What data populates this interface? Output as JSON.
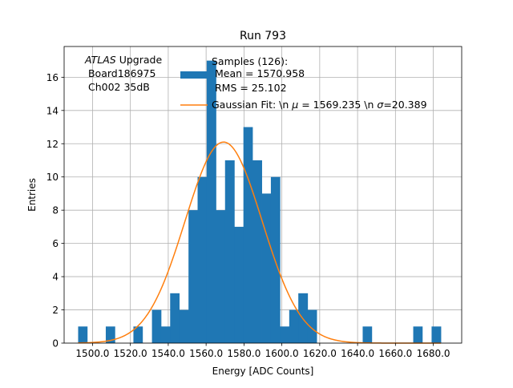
{
  "chart_data": {
    "type": "bar",
    "title": "Run 793",
    "xlabel": "Energy [ADC Counts]",
    "ylabel": "Entries",
    "xlim": [
      1485.0,
      1695.0
    ],
    "ylim": [
      0,
      17.85
    ],
    "grid": true,
    "x_ticks": [
      1500,
      1520,
      1540,
      1560,
      1580,
      1600,
      1620,
      1640,
      1660,
      1680
    ],
    "x_tick_labels": [
      "1500.0",
      "1520.0",
      "1540.0",
      "1560.0",
      "1580.0",
      "1600.0",
      "1620.0",
      "1640.0",
      "1660.0",
      "1680.0"
    ],
    "y_ticks": [
      0,
      2,
      4,
      6,
      8,
      10,
      12,
      14,
      16
    ],
    "y_tick_labels": [
      "0",
      "2",
      "4",
      "6",
      "8",
      "10",
      "12",
      "14",
      "16"
    ],
    "histogram": {
      "name": "Samples (126):\n Mean = 1570.958\n RMS = 25.102",
      "color": "#1f77b4",
      "bins": [
        {
          "x0": 1492.4,
          "x1": 1497.2,
          "count": 1
        },
        {
          "x0": 1507.0,
          "x1": 1511.8,
          "count": 1
        },
        {
          "x0": 1521.6,
          "x1": 1526.4,
          "count": 1
        },
        {
          "x0": 1531.4,
          "x1": 1536.2,
          "count": 2
        },
        {
          "x0": 1536.2,
          "x1": 1541.0,
          "count": 1
        },
        {
          "x0": 1541.0,
          "x1": 1545.8,
          "count": 3
        },
        {
          "x0": 1545.8,
          "x1": 1550.7,
          "count": 2
        },
        {
          "x0": 1550.7,
          "x1": 1555.5,
          "count": 8
        },
        {
          "x0": 1555.5,
          "x1": 1560.3,
          "count": 10
        },
        {
          "x0": 1560.3,
          "x1": 1565.2,
          "count": 17
        },
        {
          "x0": 1565.2,
          "x1": 1570.0,
          "count": 8
        },
        {
          "x0": 1570.0,
          "x1": 1574.9,
          "count": 11
        },
        {
          "x0": 1574.9,
          "x1": 1579.7,
          "count": 7
        },
        {
          "x0": 1579.7,
          "x1": 1584.5,
          "count": 13
        },
        {
          "x0": 1584.5,
          "x1": 1589.4,
          "count": 11
        },
        {
          "x0": 1589.4,
          "x1": 1594.2,
          "count": 9
        },
        {
          "x0": 1594.2,
          "x1": 1599.0,
          "count": 10
        },
        {
          "x0": 1599.0,
          "x1": 1603.9,
          "count": 1
        },
        {
          "x0": 1603.9,
          "x1": 1608.7,
          "count": 2
        },
        {
          "x0": 1608.7,
          "x1": 1613.6,
          "count": 3
        },
        {
          "x0": 1613.6,
          "x1": 1618.4,
          "count": 2
        },
        {
          "x0": 1642.7,
          "x1": 1647.5,
          "count": 1
        },
        {
          "x0": 1669.4,
          "x1": 1674.2,
          "count": 1
        },
        {
          "x0": 1679.1,
          "x1": 1684.0,
          "count": 1
        }
      ]
    },
    "fit": {
      "name": "Gaussian Fit: \\n $\\mu$ = 1569.235 \\n $\\sigma$=20.389",
      "label_parts": [
        "Gaussian Fit: \\n ",
        "μ",
        " = 1569.235 \\n ",
        "σ",
        "=20.389"
      ],
      "color": "#ff7f0e",
      "mu": 1569.235,
      "sigma": 20.389,
      "amplitude": 12.1,
      "x_range": [
        1492.4,
        1684.0
      ]
    },
    "legend_position": "top-center",
    "legend_lines": {
      "samples": [
        "Samples (126):",
        " Mean = 1570.958",
        " RMS = 25.102"
      ]
    },
    "annotation": {
      "italic": "ATLAS",
      "rest": " Upgrade",
      "lines": [
        " Board186975",
        " Ch002 35dB"
      ]
    }
  }
}
